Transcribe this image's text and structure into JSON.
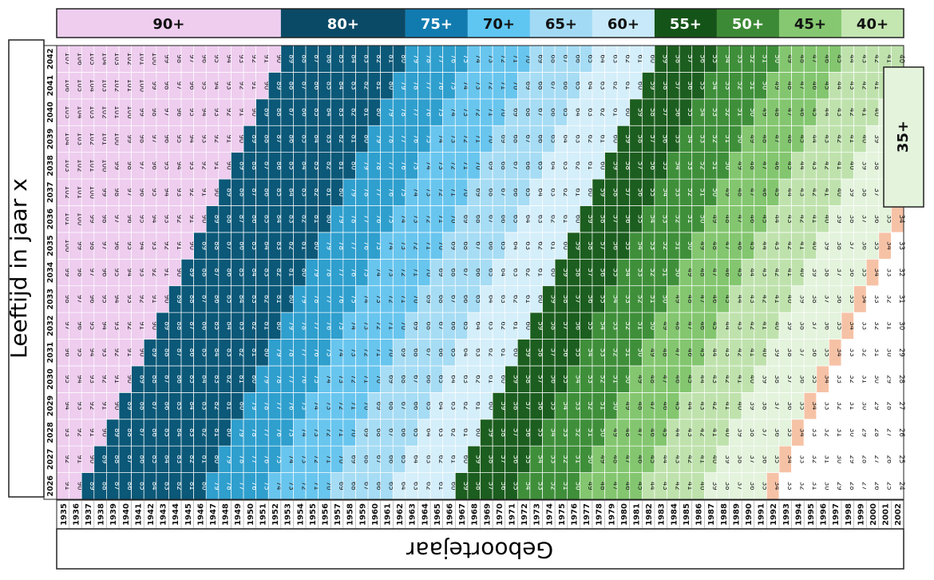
{
  "chart_data": {
    "type": "heatmap",
    "xlabel": "Geboortejaar",
    "ylabel": "Leeftijd in jaar x",
    "x_values": [
      1935,
      1936,
      1937,
      1938,
      1939,
      1940,
      1941,
      1942,
      1943,
      1944,
      1945,
      1946,
      1947,
      1948,
      1949,
      1950,
      1951,
      1952,
      1953,
      1954,
      1955,
      1956,
      1957,
      1958,
      1959,
      1960,
      1961,
      1962,
      1963,
      1964,
      1965,
      1966,
      1967,
      1968,
      1969,
      1970,
      1971,
      1972,
      1973,
      1974,
      1975,
      1976,
      1977,
      1978,
      1979,
      1980,
      1981,
      1982,
      1983,
      1984,
      1985,
      1986,
      1987,
      1988,
      1989,
      1990,
      1991,
      1992,
      1993,
      1994,
      1995,
      1996,
      1997,
      1998,
      1999,
      2000,
      2001,
      2002
    ],
    "y_values": [
      2026,
      2027,
      2028,
      2029,
      2030,
      2031,
      2032,
      2033,
      2034,
      2035,
      2036,
      2037,
      2038,
      2039,
      2040,
      2041,
      2042
    ],
    "cell_value_rule": "age = year - birth_year",
    "cell_value_range": [
      24,
      107
    ],
    "age_groups": [
      {
        "label": "90+",
        "min_age": 90,
        "color": "#eecdef",
        "header_color": "#eecdef"
      },
      {
        "label": "80+",
        "min_age": 80,
        "color": "#0b5878",
        "header_color": "#0b4a66"
      },
      {
        "label": "75+",
        "min_age": 75,
        "color": "#2f9fce",
        "header_color": "#117bb0"
      },
      {
        "label": "70+",
        "min_age": 70,
        "color": "#68c5ee",
        "header_color": "#5fc6f2"
      },
      {
        "label": "65+",
        "min_age": 65,
        "color": "#a6dcf4",
        "header_color": "#a2daf5"
      },
      {
        "label": "60+",
        "min_age": 60,
        "color": "#d4eefa",
        "header_color": "#c7e9f9"
      },
      {
        "label": "55+",
        "min_age": 55,
        "color": "#1c5e1f",
        "header_color": "#155418"
      },
      {
        "label": "50+",
        "min_age": 50,
        "color": "#3f8f3a",
        "header_color": "#3c8a35"
      },
      {
        "label": "45+",
        "min_age": 45,
        "color": "#83c66f",
        "header_color": "#86c871"
      },
      {
        "label": "40+",
        "min_age": 40,
        "color": "#bfe2ad",
        "header_color": "#c4e6b1"
      },
      {
        "label": "35+",
        "min_age": 35,
        "color": "#e3f3dc",
        "header_color": "#e3f3dc"
      }
    ],
    "highlight_age": 34,
    "highlight_color": "#f6c2a6",
    "below_color": "#ffffff"
  }
}
